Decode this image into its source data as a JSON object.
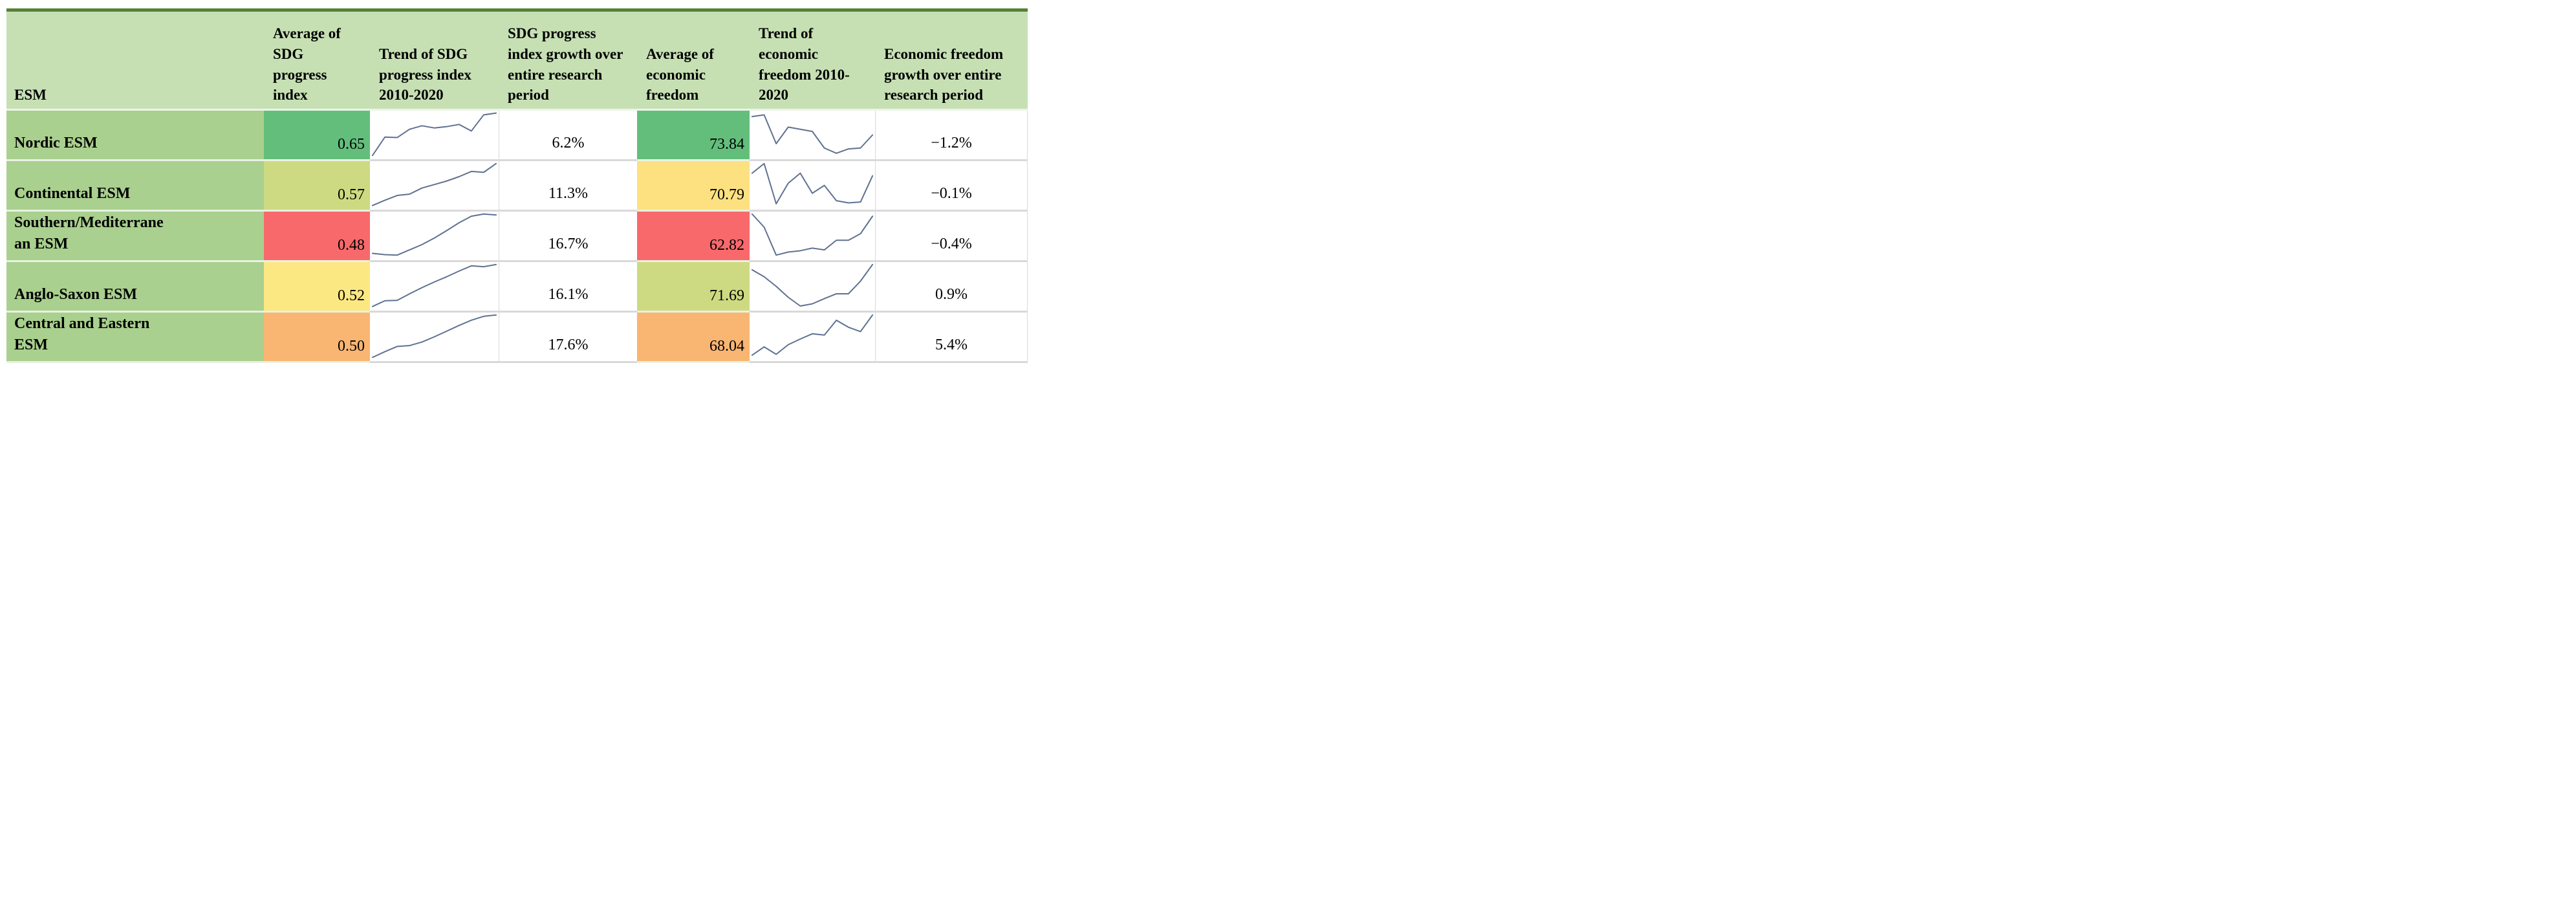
{
  "colors": {
    "top_border": "#538135",
    "header_bg": "#c6e0b4",
    "label_column_bg": "#a9d08e",
    "row_separator_green": "#e9f1e1",
    "row_separator_gray": "#d9d9d9",
    "sparkline": "#5f7191",
    "scale_green": "#63be7b",
    "scale_yellow_green": "#cdda81",
    "scale_yellow": "#fce883",
    "scale_orange": "#f9b572",
    "scale_red": "#f8696b"
  },
  "header": {
    "esm": "ESM",
    "avg_sdg": "Average of\nSDG\nprogress\nindex",
    "sdg_trend": "Trend of SDG\nprogress index\n2010-2020",
    "sdg_growth": "SDG progress\nindex growth over\nentire research\nperiod",
    "avg_ef": "Average of\neconomic\nfreedom",
    "ef_trend": "Trend of\neconomic\nfreedom 2010-\n2020",
    "ef_growth": "Economic freedom\ngrowth over entire\nresearch period"
  },
  "rows": [
    {
      "esm": "Nordic ESM",
      "avg_sdg": "0.65",
      "avg_sdg_bg": "#63be7b",
      "sdg_trend": [
        0.03,
        0.45,
        0.44,
        0.63,
        0.71,
        0.66,
        0.69,
        0.74,
        0.59,
        0.96,
        1.0
      ],
      "sdg_growth": "6.2%",
      "avg_ef": "73.84",
      "avg_ef_bg": "#63be7b",
      "ef_trend": [
        0.92,
        0.96,
        0.3,
        0.68,
        0.63,
        0.58,
        0.2,
        0.08,
        0.18,
        0.2,
        0.5
      ],
      "ef_growth": "−1.2%"
    },
    {
      "esm": "Continental ESM",
      "avg_sdg": "0.57",
      "avg_sdg_bg": "#cdda81",
      "sdg_trend": [
        0.04,
        0.16,
        0.27,
        0.3,
        0.44,
        0.52,
        0.6,
        0.7,
        0.82,
        0.8,
        1.0
      ],
      "sdg_growth": "11.3%",
      "avg_ef": "70.79",
      "avg_ef_bg": "#fde181",
      "ef_trend": [
        0.78,
        1.0,
        0.08,
        0.55,
        0.78,
        0.32,
        0.5,
        0.15,
        0.1,
        0.12,
        0.72
      ],
      "ef_growth": "−0.1%"
    },
    {
      "esm": "Southern/Mediterrane\nan ESM",
      "avg_sdg": "0.48",
      "avg_sdg_bg": "#f8696b",
      "sdg_trend": [
        0.1,
        0.07,
        0.06,
        0.18,
        0.3,
        0.45,
        0.62,
        0.8,
        0.95,
        1.0,
        0.98
      ],
      "sdg_growth": "16.7%",
      "avg_ef": "62.82",
      "avg_ef_bg": "#f8696b",
      "ef_trend": [
        1.0,
        0.7,
        0.06,
        0.13,
        0.16,
        0.22,
        0.18,
        0.4,
        0.4,
        0.55,
        0.95
      ],
      "ef_growth": "−0.4%"
    },
    {
      "esm": "Anglo-Saxon ESM",
      "avg_sdg": "0.52",
      "avg_sdg_bg": "#fce883",
      "sdg_trend": [
        0.04,
        0.17,
        0.18,
        0.33,
        0.47,
        0.6,
        0.72,
        0.85,
        0.97,
        0.95,
        1.0
      ],
      "sdg_growth": "16.1%",
      "avg_ef": "71.69",
      "avg_ef_bg": "#cdda81",
      "ef_trend": [
        0.88,
        0.72,
        0.5,
        0.25,
        0.05,
        0.1,
        0.22,
        0.33,
        0.33,
        0.62,
        1.0
      ],
      "ef_growth": "0.9%"
    },
    {
      "esm": "Central and Eastern\nESM",
      "avg_sdg": "0.50",
      "avg_sdg_bg": "#f9b572",
      "sdg_trend": [
        0.03,
        0.16,
        0.28,
        0.3,
        0.38,
        0.5,
        0.63,
        0.76,
        0.88,
        0.97,
        1.0
      ],
      "sdg_growth": "17.6%",
      "avg_ef": "68.04",
      "avg_ef_bg": "#f9b572",
      "ef_trend": [
        0.08,
        0.27,
        0.1,
        0.32,
        0.45,
        0.57,
        0.54,
        0.88,
        0.72,
        0.62,
        1.0
      ],
      "ef_growth": "5.4%"
    }
  ],
  "chart_data": {
    "type": "table",
    "columns": [
      "ESM",
      "Average of SDG progress index",
      "Trend of SDG progress index 2010-2020",
      "SDG progress index growth over entire research period",
      "Average of economic freedom",
      "Trend of economic freedom 2010-2020",
      "Economic freedom growth over entire research period"
    ],
    "sparkline_period": "2010-2020",
    "rows": [
      {
        "esm": "Nordic ESM",
        "avg_sdg_progress_index": 0.65,
        "sdg_growth_pct": 6.2,
        "avg_economic_freedom": 73.84,
        "ef_growth_pct": -1.2,
        "sdg_trend_shape_norm": [
          0.03,
          0.45,
          0.44,
          0.63,
          0.71,
          0.66,
          0.69,
          0.74,
          0.59,
          0.96,
          1.0
        ],
        "ef_trend_shape_norm": [
          0.92,
          0.96,
          0.3,
          0.68,
          0.63,
          0.58,
          0.2,
          0.08,
          0.18,
          0.2,
          0.5
        ]
      },
      {
        "esm": "Continental ESM",
        "avg_sdg_progress_index": 0.57,
        "sdg_growth_pct": 11.3,
        "avg_economic_freedom": 70.79,
        "ef_growth_pct": -0.1,
        "sdg_trend_shape_norm": [
          0.04,
          0.16,
          0.27,
          0.3,
          0.44,
          0.52,
          0.6,
          0.7,
          0.82,
          0.8,
          1.0
        ],
        "ef_trend_shape_norm": [
          0.78,
          1.0,
          0.08,
          0.55,
          0.78,
          0.32,
          0.5,
          0.15,
          0.1,
          0.12,
          0.72
        ]
      },
      {
        "esm": "Southern/Mediterranean ESM",
        "avg_sdg_progress_index": 0.48,
        "sdg_growth_pct": 16.7,
        "avg_economic_freedom": 62.82,
        "ef_growth_pct": -0.4,
        "sdg_trend_shape_norm": [
          0.1,
          0.07,
          0.06,
          0.18,
          0.3,
          0.45,
          0.62,
          0.8,
          0.95,
          1.0,
          0.98
        ],
        "ef_trend_shape_norm": [
          1.0,
          0.7,
          0.06,
          0.13,
          0.16,
          0.22,
          0.18,
          0.4,
          0.4,
          0.55,
          0.95
        ]
      },
      {
        "esm": "Anglo-Saxon ESM",
        "avg_sdg_progress_index": 0.52,
        "sdg_growth_pct": 16.1,
        "avg_economic_freedom": 71.69,
        "ef_growth_pct": 0.9,
        "sdg_trend_shape_norm": [
          0.04,
          0.17,
          0.18,
          0.33,
          0.47,
          0.6,
          0.72,
          0.85,
          0.97,
          0.95,
          1.0
        ],
        "ef_trend_shape_norm": [
          0.88,
          0.72,
          0.5,
          0.25,
          0.05,
          0.1,
          0.22,
          0.33,
          0.33,
          0.62,
          1.0
        ]
      },
      {
        "esm": "Central and Eastern ESM",
        "avg_sdg_progress_index": 0.5,
        "sdg_growth_pct": 17.6,
        "avg_economic_freedom": 68.04,
        "ef_growth_pct": 5.4,
        "sdg_trend_shape_norm": [
          0.03,
          0.16,
          0.28,
          0.3,
          0.38,
          0.5,
          0.63,
          0.76,
          0.88,
          0.97,
          1.0
        ],
        "ef_trend_shape_norm": [
          0.08,
          0.27,
          0.1,
          0.32,
          0.45,
          0.57,
          0.54,
          0.88,
          0.72,
          0.62,
          1.0
        ]
      }
    ],
    "notes": "Cell fills follow a red-yellow-green conditional color scale; sparkline values are normalized 0-1 shape estimates over 2010-2020."
  }
}
